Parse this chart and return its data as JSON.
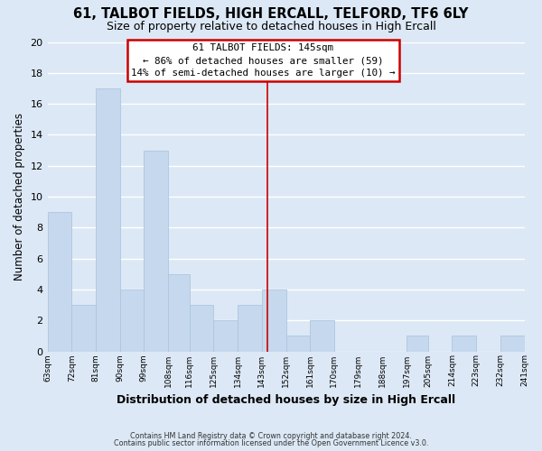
{
  "title": "61, TALBOT FIELDS, HIGH ERCALL, TELFORD, TF6 6LY",
  "subtitle": "Size of property relative to detached houses in High Ercall",
  "xlabel": "Distribution of detached houses by size in High Ercall",
  "ylabel": "Number of detached properties",
  "bin_edges": [
    63,
    72,
    81,
    90,
    99,
    108,
    116,
    125,
    134,
    143,
    152,
    161,
    170,
    179,
    188,
    197,
    205,
    214,
    223,
    232,
    241
  ],
  "counts": [
    9,
    3,
    17,
    4,
    13,
    5,
    3,
    2,
    3,
    4,
    1,
    2,
    0,
    0,
    0,
    1,
    0,
    1,
    0,
    1
  ],
  "bar_color": "#c5d8ed",
  "bar_edge_color": "#aec6e0",
  "grid_color": "#ffffff",
  "bg_color": "#dce8f5",
  "plot_bg_color": "#dce8f5",
  "vline_x": 145,
  "vline_color": "#cc0000",
  "annotation_title": "61 TALBOT FIELDS: 145sqm",
  "annotation_line1": "← 86% of detached houses are smaller (59)",
  "annotation_line2": "14% of semi-detached houses are larger (10) →",
  "annotation_box_edge": "#cc0000",
  "annotation_box_bg": "#ffffff",
  "ylim": [
    0,
    20
  ],
  "yticks": [
    0,
    2,
    4,
    6,
    8,
    10,
    12,
    14,
    16,
    18,
    20
  ],
  "tick_labels": [
    "63sqm",
    "72sqm",
    "81sqm",
    "90sqm",
    "99sqm",
    "108sqm",
    "116sqm",
    "125sqm",
    "134sqm",
    "143sqm",
    "152sqm",
    "161sqm",
    "170sqm",
    "179sqm",
    "188sqm",
    "197sqm",
    "205sqm",
    "214sqm",
    "223sqm",
    "232sqm",
    "241sqm"
  ],
  "footnote1": "Contains HM Land Registry data © Crown copyright and database right 2024.",
  "footnote2": "Contains public sector information licensed under the Open Government Licence v3.0."
}
